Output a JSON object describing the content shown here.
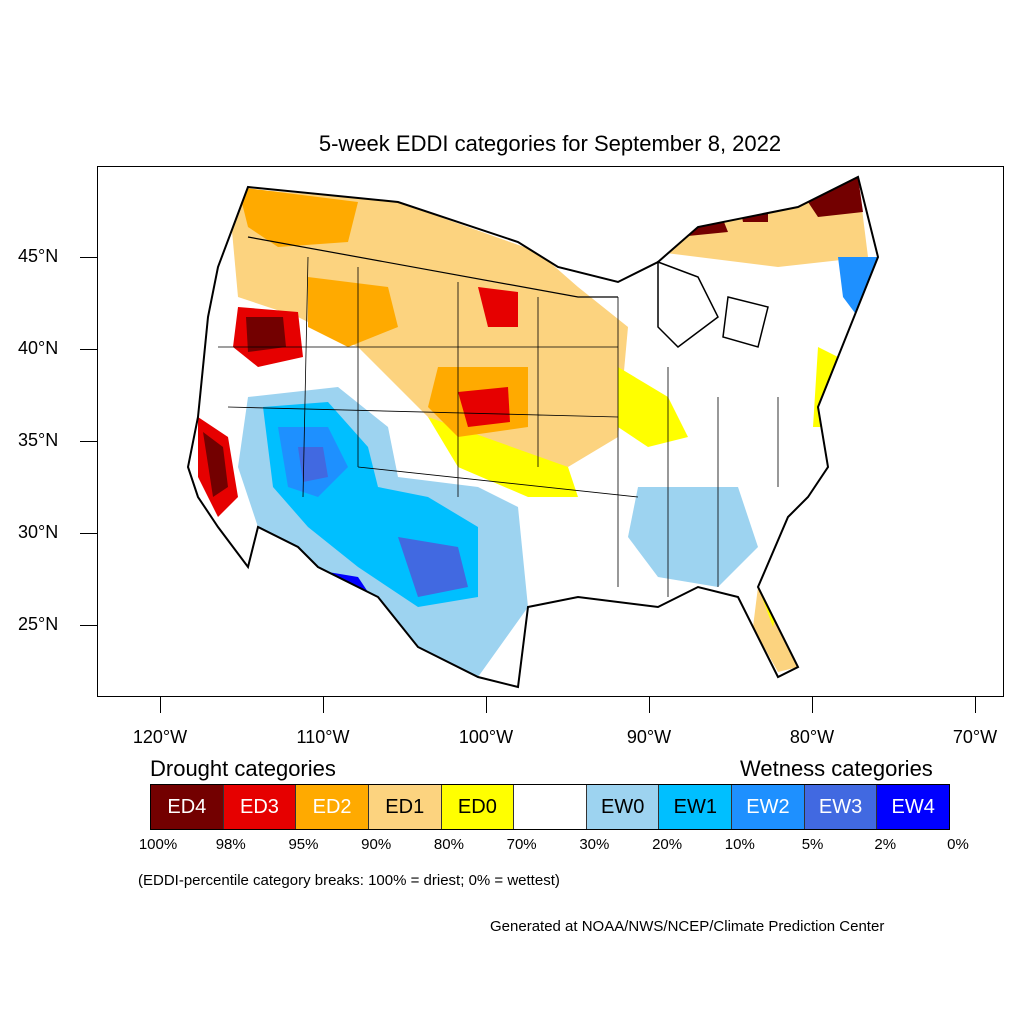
{
  "title": "5-week EDDI categories for September 8, 2022",
  "map": {
    "lat_labels": [
      "45°N",
      "40°N",
      "35°N",
      "30°N",
      "25°N"
    ],
    "lon_labels": [
      "120°W",
      "110°W",
      "100°W",
      "90°W",
      "80°W",
      "70°W"
    ]
  },
  "legend": {
    "drought_heading": "Drought categories",
    "wetness_heading": "Wetness categories",
    "categories": [
      {
        "label": "ED4",
        "color": "#730000",
        "text_color": "#ffffff"
      },
      {
        "label": "ED3",
        "color": "#e60000",
        "text_color": "#ffffff"
      },
      {
        "label": "ED2",
        "color": "#ffaa00",
        "text_color": "#ffffff"
      },
      {
        "label": "ED1",
        "color": "#fcd37f",
        "text_color": "#000000"
      },
      {
        "label": "ED0",
        "color": "#ffff00",
        "text_color": "#000000"
      },
      {
        "label": "",
        "color": "#ffffff",
        "text_color": "#000000"
      },
      {
        "label": "EW0",
        "color": "#9dd3f0",
        "text_color": "#000000"
      },
      {
        "label": "EW1",
        "color": "#00bfff",
        "text_color": "#000000"
      },
      {
        "label": "EW2",
        "color": "#1e90ff",
        "text_color": "#ffffff"
      },
      {
        "label": "EW3",
        "color": "#4169e1",
        "text_color": "#ffffff"
      },
      {
        "label": "EW4",
        "color": "#0000ff",
        "text_color": "#ffffff"
      }
    ],
    "percent_breaks": [
      "100%",
      "98%",
      "95%",
      "90%",
      "80%",
      "70%",
      "30%",
      "20%",
      "10%",
      "5%",
      "2%",
      "0%"
    ]
  },
  "note": "(EDDI-percentile category breaks: 100% = driest; 0% = wettest)",
  "credit": "Generated at NOAA/NWS/NCEP/Climate Prediction Center"
}
